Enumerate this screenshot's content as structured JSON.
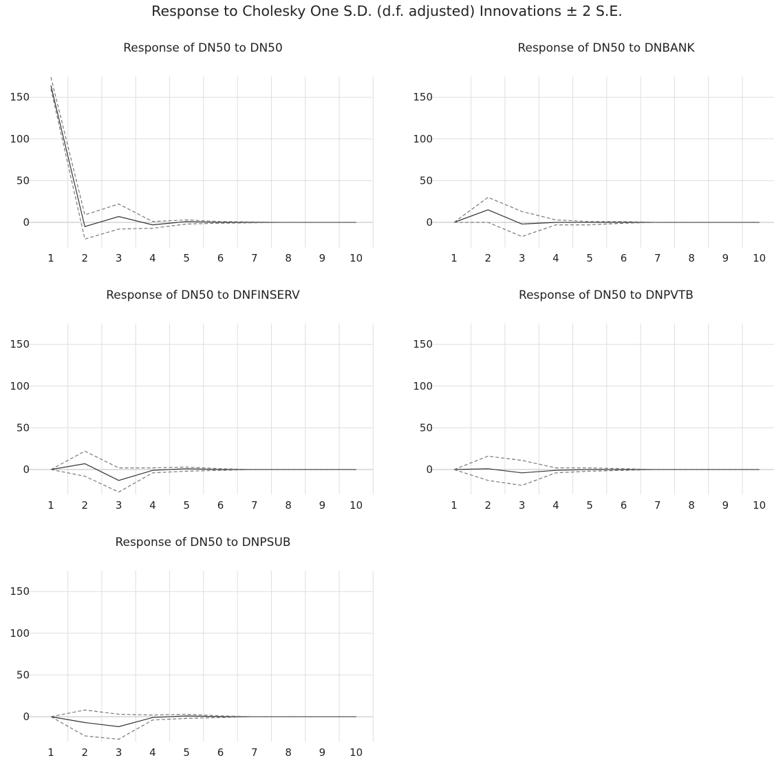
{
  "title": "Response to Cholesky One S.D. (d.f. adjusted) Innovations ± 2 S.E.",
  "chart_data": [
    {
      "type": "line",
      "title": "Response of DN50 to DN50",
      "x": [
        1,
        2,
        3,
        4,
        5,
        6,
        7,
        8,
        9,
        10
      ],
      "ylim": [
        -30,
        175
      ],
      "yticks": [
        0,
        50,
        100,
        150
      ],
      "series": [
        {
          "values": [
            164,
            -5,
            7,
            -3,
            1,
            0,
            0,
            0,
            0,
            0
          ],
          "style": "solid"
        },
        {
          "values": [
            174,
            9,
            22,
            1,
            3,
            1,
            0.5,
            0,
            0,
            0
          ],
          "style": "dashed"
        },
        {
          "values": [
            160,
            -20,
            -8,
            -7,
            -2,
            -1,
            -0.5,
            0,
            0,
            0
          ],
          "style": "dashed"
        }
      ]
    },
    {
      "type": "line",
      "title": "Response of DN50 to DNBANK",
      "x": [
        1,
        2,
        3,
        4,
        5,
        6,
        7,
        8,
        9,
        10
      ],
      "ylim": [
        -30,
        175
      ],
      "yticks": [
        0,
        50,
        100,
        150
      ],
      "series": [
        {
          "values": [
            0,
            15,
            -2,
            0,
            0,
            0,
            0,
            0,
            0,
            0
          ],
          "style": "solid"
        },
        {
          "values": [
            0,
            30,
            13,
            3,
            1,
            1,
            0,
            0,
            0,
            0
          ],
          "style": "dashed"
        },
        {
          "values": [
            0,
            0,
            -17,
            -3,
            -3,
            -1,
            0,
            0,
            0,
            0
          ],
          "style": "dashed"
        }
      ]
    },
    {
      "type": "line",
      "title": "Response of DN50 to DNFINSERV",
      "x": [
        1,
        2,
        3,
        4,
        5,
        6,
        7,
        8,
        9,
        10
      ],
      "ylim": [
        -30,
        175
      ],
      "yticks": [
        0,
        50,
        100,
        150
      ],
      "series": [
        {
          "values": [
            0,
            7,
            -13,
            -1,
            1,
            0,
            0,
            0,
            0,
            0
          ],
          "style": "solid"
        },
        {
          "values": [
            0,
            22,
            2,
            2,
            3,
            1,
            0,
            0,
            0,
            0
          ],
          "style": "dashed"
        },
        {
          "values": [
            0,
            -8,
            -27,
            -4,
            -2,
            -1,
            0,
            0,
            0,
            0
          ],
          "style": "dashed"
        }
      ]
    },
    {
      "type": "line",
      "title": "Response of DN50 to DNPVTB",
      "x": [
        1,
        2,
        3,
        4,
        5,
        6,
        7,
        8,
        9,
        10
      ],
      "ylim": [
        -30,
        175
      ],
      "yticks": [
        0,
        50,
        100,
        150
      ],
      "series": [
        {
          "values": [
            0,
            1,
            -4,
            -1,
            0,
            0,
            0,
            0,
            0,
            0
          ],
          "style": "solid"
        },
        {
          "values": [
            0,
            16,
            11,
            2,
            2,
            1,
            0,
            0,
            0,
            0
          ],
          "style": "dashed"
        },
        {
          "values": [
            0,
            -13,
            -19,
            -4,
            -2,
            -1,
            0,
            0,
            0,
            0
          ],
          "style": "dashed"
        }
      ]
    },
    {
      "type": "line",
      "title": "Response of DN50 to DNPSUB",
      "x": [
        1,
        2,
        3,
        4,
        5,
        6,
        7,
        8,
        9,
        10
      ],
      "ylim": [
        -30,
        175
      ],
      "yticks": [
        0,
        50,
        100,
        150
      ],
      "series": [
        {
          "values": [
            0,
            -7,
            -12,
            -1,
            1,
            0,
            0,
            0,
            0,
            0
          ],
          "style": "solid"
        },
        {
          "values": [
            0,
            8,
            3,
            2,
            3,
            1,
            0,
            0,
            0,
            0
          ],
          "style": "dashed"
        },
        {
          "values": [
            0,
            -23,
            -27,
            -4,
            -2,
            -1,
            0,
            0,
            0,
            0
          ],
          "style": "dashed"
        }
      ]
    }
  ]
}
